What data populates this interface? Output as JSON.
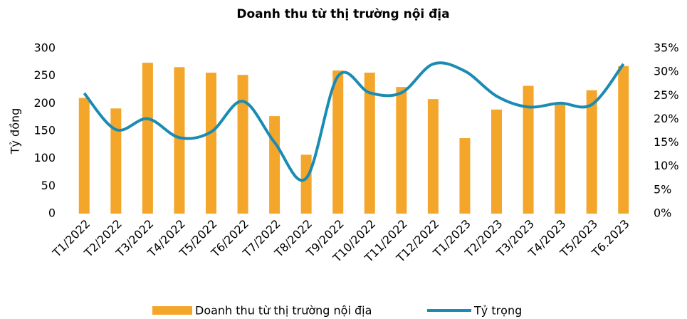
{
  "chart_data": {
    "type": "bar_line",
    "title": "Doanh thu từ thị trường nội địa",
    "y_label": "Tỷ đồng",
    "categories": [
      "T1/2022",
      "T2/2022",
      "T3/2022",
      "T4/2022",
      "T5/2022",
      "T6/2022",
      "T7/2022",
      "T8/2022",
      "T9/2022",
      "T10/2022",
      "T11/2022",
      "T12/2022",
      "T1/2023",
      "T2/2023",
      "T3/2023",
      "T4/2023",
      "T5/2023",
      "T6.2023"
    ],
    "series": [
      {
        "name": "Doanh thu từ thị trường nội địa",
        "color": "#f4a62a",
        "type": "bar",
        "values": [
          210,
          191,
          274,
          266,
          256,
          252,
          177,
          107,
          260,
          256,
          230,
          208,
          137,
          189,
          232,
          201,
          224,
          268
        ]
      },
      {
        "name": "Tỷ trọng",
        "color": "#1a8bb3",
        "type": "line",
        "axis": "y2",
        "values": [
          25.5,
          17.8,
          20.1,
          16.1,
          17.3,
          23.8,
          15.1,
          7.5,
          29.1,
          25.6,
          25.6,
          31.7,
          30.2,
          24.9,
          22.6,
          23.4,
          23.1,
          31.7
        ]
      }
    ],
    "ylim": [
      0,
      300
    ],
    "yticks": [
      0,
      50,
      100,
      150,
      200,
      250,
      300
    ],
    "y2lim": [
      0,
      35
    ],
    "y2ticks": [
      {
        "value": 0,
        "label": "0%"
      },
      {
        "value": 5,
        "label": "5%"
      },
      {
        "value": 10,
        "label": "10%"
      },
      {
        "value": 15,
        "label": "15%"
      },
      {
        "value": 20,
        "label": "20%"
      },
      {
        "value": 25,
        "label": "25%"
      },
      {
        "value": 30,
        "label": "30%"
      },
      {
        "value": 35,
        "label": "35%"
      }
    ],
    "legend": "bottom"
  }
}
